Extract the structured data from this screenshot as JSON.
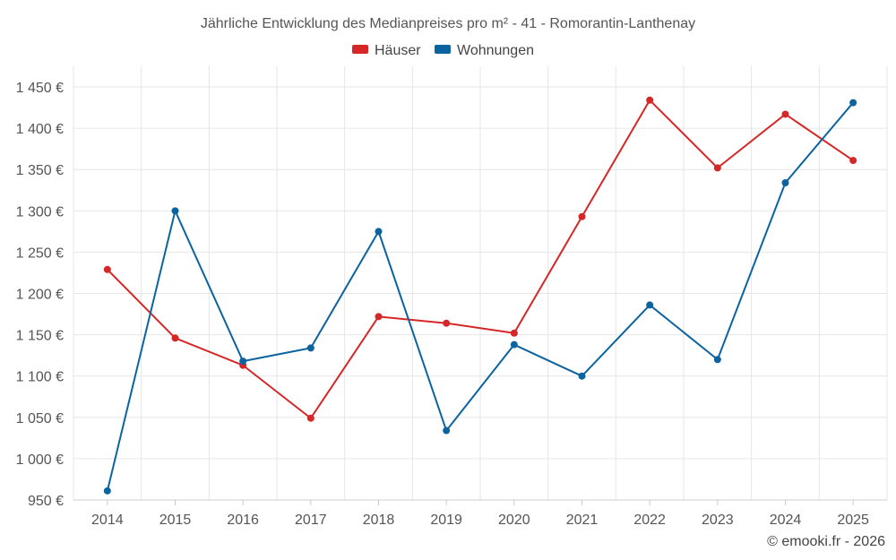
{
  "chart_data": {
    "type": "line",
    "title": "Jährliche Entwicklung des Medianpreises pro m² - 41 - Romorantin-Lanthenay",
    "categories": [
      "2014",
      "2015",
      "2016",
      "2017",
      "2018",
      "2019",
      "2020",
      "2021",
      "2022",
      "2023",
      "2024",
      "2025"
    ],
    "series": [
      {
        "name": "Häuser",
        "color": "#d62728",
        "values": [
          1229,
          1146,
          1113,
          1049,
          1172,
          1164,
          1152,
          1293,
          1434,
          1352,
          1417,
          1361
        ]
      },
      {
        "name": "Wohnungen",
        "color": "#0b64a0",
        "values": [
          961,
          1300,
          1118,
          1134,
          1275,
          1034,
          1138,
          1100,
          1186,
          1120,
          1334,
          1431
        ]
      }
    ],
    "ylim": [
      950,
      1475
    ],
    "yticks": [
      950,
      1000,
      1050,
      1100,
      1150,
      1200,
      1250,
      1300,
      1350,
      1400,
      1450
    ],
    "ytick_labels": [
      "950 €",
      "1 000 €",
      "1 050 €",
      "1 100 €",
      "1 150 €",
      "1 200 €",
      "1 250 €",
      "1 300 €",
      "1 350 €",
      "1 400 €",
      "1 450 €"
    ],
    "xlabel": "",
    "ylabel": "",
    "legend_position": "top-center",
    "grid": true
  },
  "credit": "© emooki.fr - 2026"
}
